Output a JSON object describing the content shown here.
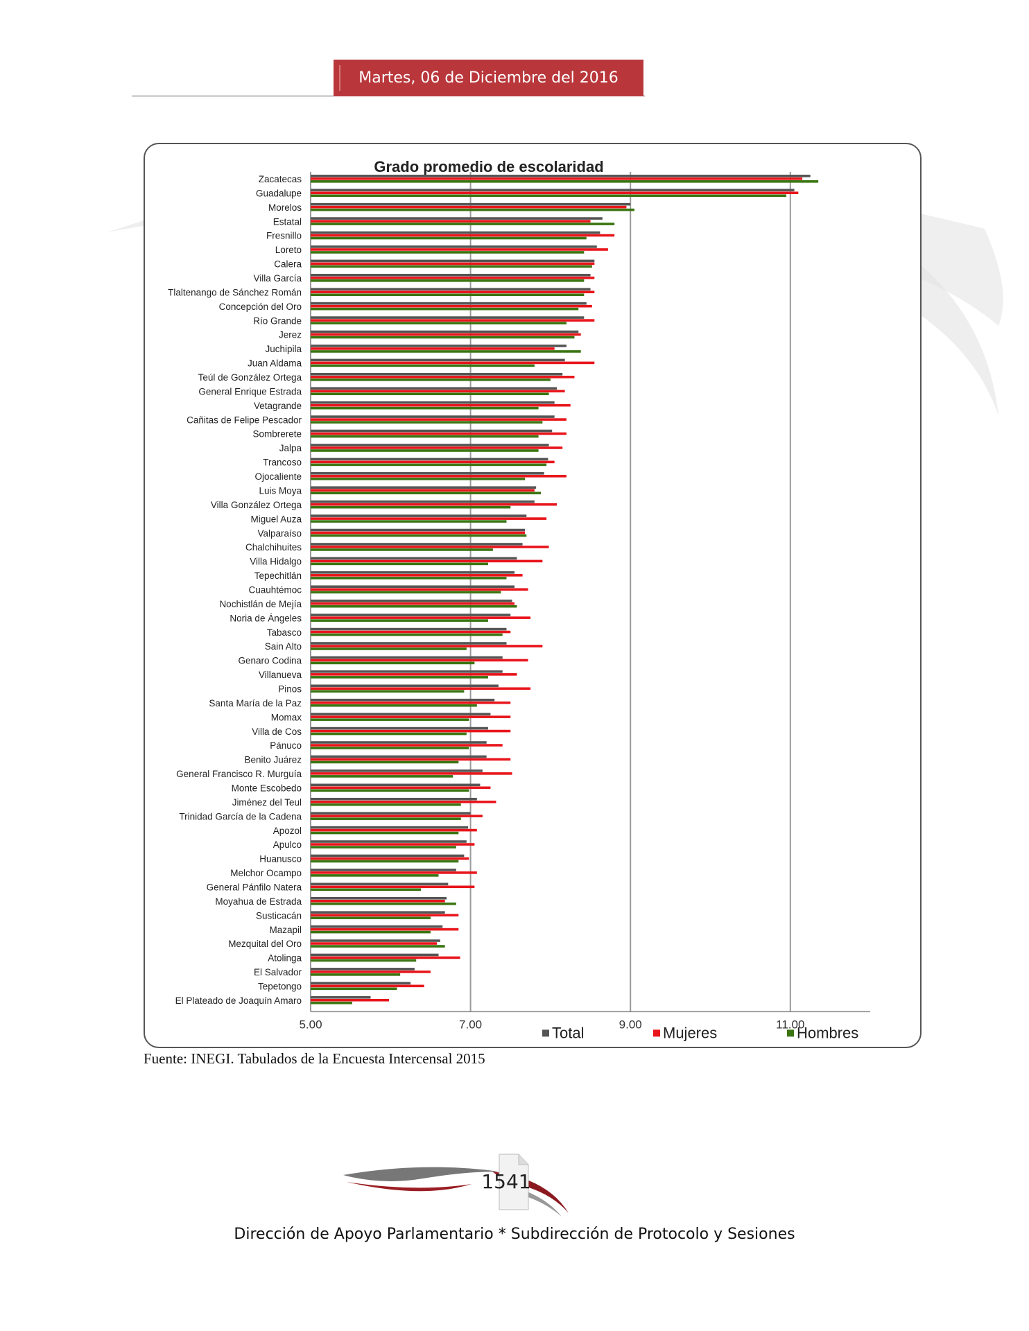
{
  "header": {
    "date": "Martes, 06 de Diciembre  del 2016"
  },
  "chart_data": {
    "type": "bar",
    "orientation": "horizontal",
    "title": "Grado promedio de escolaridad",
    "xlim": [
      5,
      12
    ],
    "ticks": [
      "5.00",
      "7.00",
      "9.00",
      "11.00"
    ],
    "grid": true,
    "legend_position": "bottom-right",
    "categories": [
      "Zacatecas",
      "Guadalupe",
      "Morelos",
      "Estatal",
      "Fresnillo",
      "Loreto",
      "Calera",
      "Villa García",
      "Tlaltenango de Sánchez Román",
      "Concepción del Oro",
      "Río Grande",
      "Jerez",
      "Juchipila",
      "Juan Aldama",
      "Teúl de González Ortega",
      "General Enrique Estrada",
      "Vetagrande",
      "Cañitas de Felipe Pescador",
      "Sombrerete",
      "Jalpa",
      "Trancoso",
      "Ojocaliente",
      "Luis Moya",
      "Villa González Ortega",
      "Miguel Auza",
      "Valparaíso",
      "Chalchihuites",
      "Villa Hidalgo",
      "Tepechitlán",
      "Cuauhtémoc",
      "Nochistlán de Mejía",
      "Noria de Ángeles",
      "Tabasco",
      "Sain Alto",
      "Genaro Codina",
      "Villanueva",
      "Pinos",
      "Santa María de la Paz",
      "Momax",
      "Villa de Cos",
      "Pánuco",
      "Benito Juárez",
      "General Francisco R. Murguía",
      "Monte Escobedo",
      "Jiménez del Teul",
      "Trinidad García de la Cadena",
      "Apozol",
      "Apulco",
      "Huanusco",
      "Melchor Ocampo",
      "General Pánfilo Natera",
      "Moyahua de Estrada",
      "Susticacán",
      "Mazapil",
      "Mezquital del Oro",
      "Atolinga",
      "El Salvador",
      "Tepetongo",
      "El Plateado de Joaquín Amaro"
    ],
    "series": [
      {
        "name": "Total",
        "color": "#555555",
        "values": [
          11.25,
          11.05,
          9.0,
          8.65,
          8.62,
          8.58,
          8.55,
          8.5,
          8.5,
          8.45,
          8.42,
          8.35,
          8.2,
          8.18,
          8.15,
          8.08,
          8.05,
          8.05,
          8.02,
          7.98,
          7.97,
          7.92,
          7.82,
          7.8,
          7.7,
          7.68,
          7.65,
          7.58,
          7.55,
          7.55,
          7.52,
          7.5,
          7.45,
          7.45,
          7.4,
          7.4,
          7.35,
          7.3,
          7.25,
          7.22,
          7.2,
          7.2,
          7.15,
          7.12,
          7.08,
          7.0,
          6.97,
          6.95,
          6.92,
          6.82,
          6.72,
          6.7,
          6.68,
          6.65,
          6.62,
          6.6,
          6.3,
          6.25,
          5.75
        ]
      },
      {
        "name": "Mujeres",
        "color": "#e8151b",
        "values": [
          11.15,
          11.1,
          8.95,
          8.5,
          8.8,
          8.72,
          8.55,
          8.55,
          8.55,
          8.52,
          8.55,
          8.38,
          8.05,
          8.55,
          8.3,
          8.18,
          8.25,
          8.2,
          8.2,
          8.15,
          8.05,
          8.2,
          7.8,
          8.08,
          7.95,
          7.68,
          7.98,
          7.9,
          7.65,
          7.72,
          7.55,
          7.75,
          7.5,
          7.9,
          7.72,
          7.58,
          7.75,
          7.5,
          7.5,
          7.5,
          7.4,
          7.5,
          7.52,
          7.25,
          7.32,
          7.15,
          7.08,
          7.05,
          6.98,
          7.08,
          7.05,
          6.68,
          6.85,
          6.85,
          6.58,
          6.87,
          6.5,
          6.42,
          5.98
        ]
      },
      {
        "name": "Hombres",
        "color": "#3a7512",
        "values": [
          11.35,
          10.95,
          9.05,
          8.8,
          8.45,
          8.42,
          8.52,
          8.42,
          8.42,
          8.35,
          8.2,
          8.3,
          8.38,
          7.8,
          8.0,
          7.98,
          7.85,
          7.9,
          7.85,
          7.85,
          7.95,
          7.68,
          7.88,
          7.5,
          7.45,
          7.7,
          7.28,
          7.22,
          7.45,
          7.38,
          7.58,
          7.22,
          7.4,
          6.95,
          7.05,
          7.22,
          6.92,
          7.08,
          6.98,
          6.95,
          6.98,
          6.85,
          6.78,
          6.98,
          6.88,
          6.88,
          6.85,
          6.82,
          6.85,
          6.6,
          6.38,
          6.82,
          6.5,
          6.5,
          6.68,
          6.32,
          6.12,
          6.08,
          5.52
        ]
      }
    ]
  },
  "source_note": "Fuente: INEGI. Tabulados de la Encuesta Intercensal 2015",
  "footer": {
    "page_number": "1541",
    "text": "Dirección de Apoyo Parlamentario * Subdirección de Protocolo y Sesiones"
  }
}
